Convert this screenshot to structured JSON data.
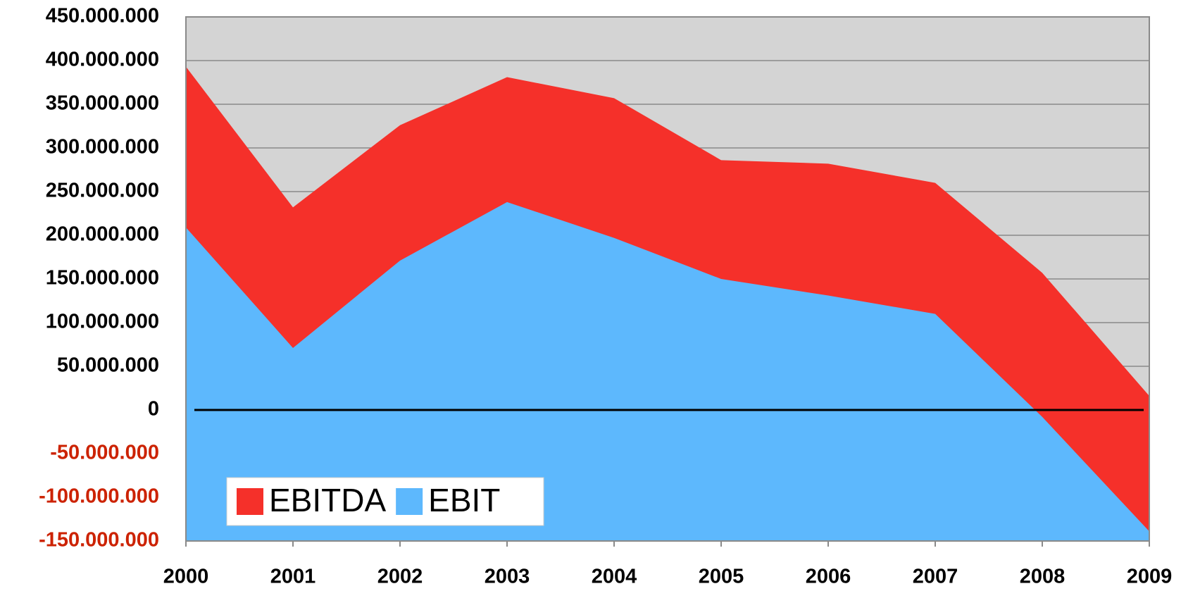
{
  "chart_data": {
    "type": "area",
    "categories": [
      "2000",
      "2001",
      "2002",
      "2003",
      "2004",
      "2005",
      "2006",
      "2007",
      "2008",
      "2009"
    ],
    "series": [
      {
        "name": "EBITDA",
        "color": "#f5302a",
        "values": [
          393000000,
          232000000,
          326000000,
          381000000,
          357000000,
          286000000,
          282000000,
          260000000,
          157000000,
          16000000
        ]
      },
      {
        "name": "EBIT",
        "color": "#5db8fd",
        "values": [
          209000000,
          71000000,
          171000000,
          238000000,
          197000000,
          150000000,
          131000000,
          110000000,
          -8000000,
          -139000000
        ]
      }
    ],
    "ylim": [
      -150000000,
      450000000
    ],
    "yticks": [
      {
        "value": 450000000,
        "label": "450.000.000"
      },
      {
        "value": 400000000,
        "label": "400.000.000"
      },
      {
        "value": 350000000,
        "label": "350.000.000"
      },
      {
        "value": 300000000,
        "label": "300.000.000"
      },
      {
        "value": 250000000,
        "label": "250.000.000"
      },
      {
        "value": 200000000,
        "label": "200.000.000"
      },
      {
        "value": 150000000,
        "label": "150.000.000"
      },
      {
        "value": 100000000,
        "label": "100.000.000"
      },
      {
        "value": 50000000,
        "label": "50.000.000"
      },
      0,
      {
        "value": -50000000,
        "label": "-50.000.000"
      },
      {
        "value": -100000000,
        "label": "-100.000.000"
      },
      {
        "value": -150000000,
        "label": "-150.000.000"
      }
    ],
    "grid": true,
    "legend": "lower left",
    "plot_background": "#d4d4d4",
    "tick_label_color": "#000000",
    "negative_tick_label_color": "#cc2200",
    "zero_line_color": "#000000"
  }
}
